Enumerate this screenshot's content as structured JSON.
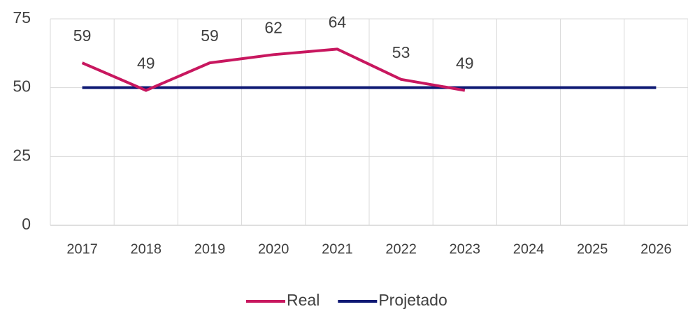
{
  "chart_data": {
    "type": "line",
    "categories": [
      "2017",
      "2018",
      "2019",
      "2020",
      "2021",
      "2022",
      "2023",
      "2024",
      "2025",
      "2026"
    ],
    "series": [
      {
        "name": "Real",
        "color": "#c8175f",
        "values": [
          59,
          49,
          59,
          62,
          64,
          53,
          49,
          null,
          null,
          null
        ],
        "data_labels": true
      },
      {
        "name": "Projetado",
        "color": "#0d1873",
        "values": [
          50,
          50,
          50,
          50,
          50,
          50,
          50,
          50,
          50,
          50
        ],
        "data_labels": false
      }
    ],
    "ylim": [
      0,
      75
    ],
    "yticks": [
      0,
      25,
      50,
      75
    ],
    "grid": true,
    "legend": "bottom"
  }
}
